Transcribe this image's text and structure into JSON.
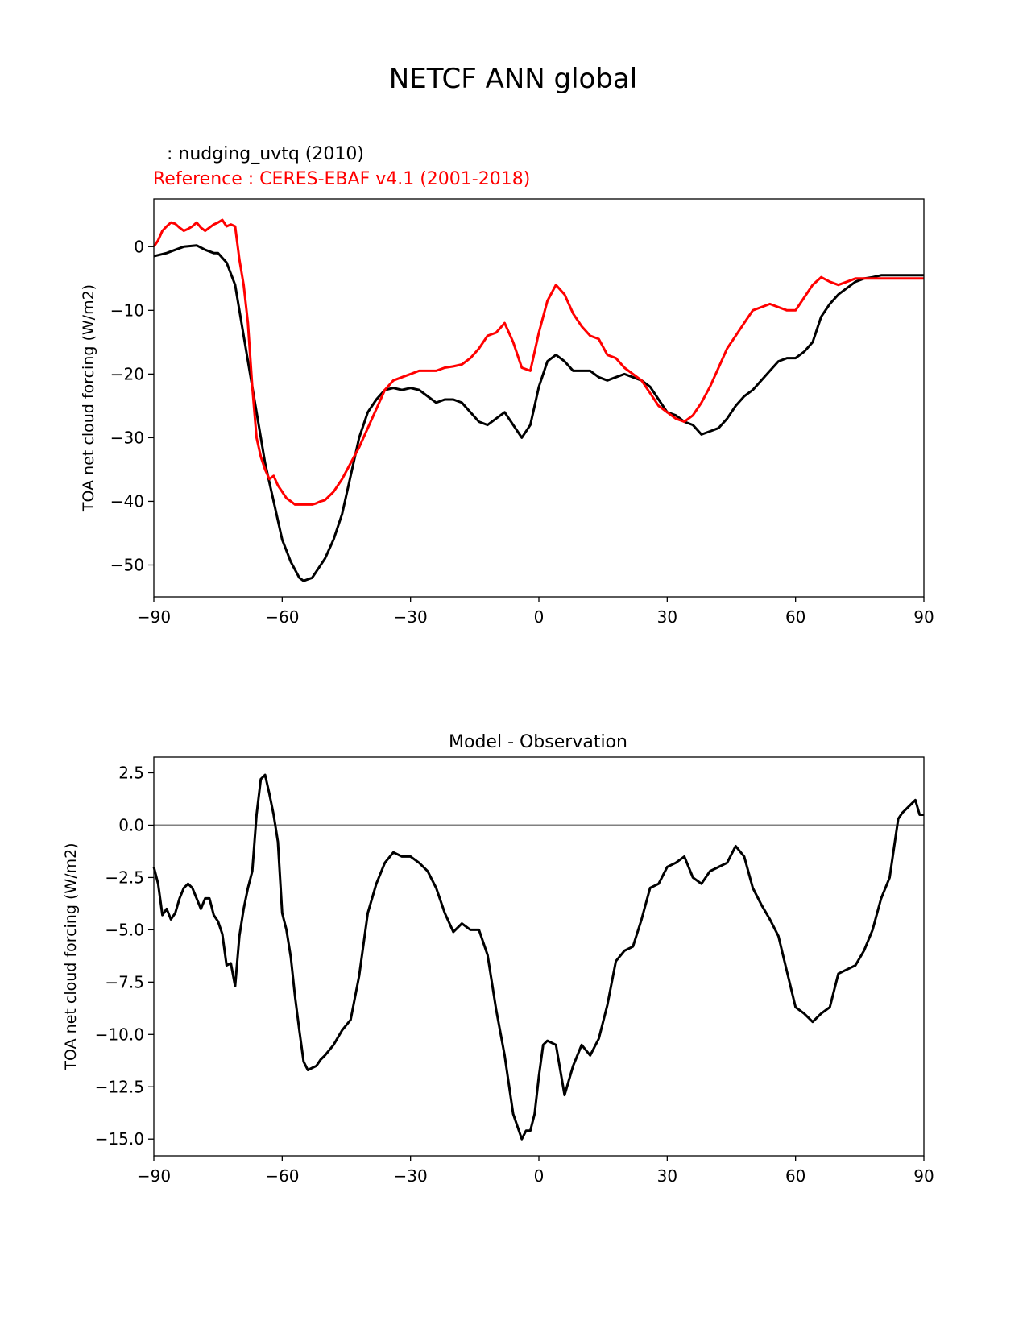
{
  "figure": {
    "title": "NETCF ANN global"
  },
  "top_panel": {
    "test_label": " : nudging_uvtq (2010)",
    "reference_label": "Reference : CERES-EBAF v4.1 (2001-2018)",
    "test_color": "#000000",
    "reference_color": "#ff0000"
  },
  "bottom_panel": {
    "title": "Model - Observation"
  },
  "chart_data": [
    {
      "type": "line",
      "xlabel": "",
      "ylabel": "TOA net cloud forcing (W/m2)",
      "xlim": [
        -90,
        90
      ],
      "ylim": [
        -55,
        7.5
      ],
      "xticks": [
        -90,
        -60,
        -30,
        0,
        30,
        60,
        90
      ],
      "xtick_labels": [
        "−90",
        "−60",
        "−30",
        "0",
        "30",
        "60",
        "90"
      ],
      "yticks": [
        0,
        -10,
        -20,
        -30,
        -40,
        -50
      ],
      "ytick_labels": [
        "0",
        "−10",
        "−20",
        "−30",
        "−40",
        "−50"
      ],
      "series": [
        {
          "name": "nudging_uvtq (2010)",
          "color": "#000000",
          "x": [
            -90,
            -87,
            -85,
            -83,
            -80,
            -78,
            -76,
            -75,
            -73,
            -71,
            -69,
            -67,
            -65,
            -64,
            -62,
            -60,
            -58,
            -56,
            -55,
            -53,
            -52,
            -50,
            -48,
            -46,
            -44,
            -42,
            -40,
            -38,
            -36,
            -34,
            -32,
            -30,
            -28,
            -26,
            -24,
            -22,
            -20,
            -18,
            -16,
            -14,
            -12,
            -10,
            -8,
            -6,
            -4,
            -2,
            0,
            2,
            4,
            6,
            8,
            10,
            12,
            14,
            16,
            18,
            20,
            22,
            24,
            26,
            28,
            30,
            32,
            34,
            36,
            38,
            40,
            42,
            44,
            46,
            48,
            50,
            52,
            54,
            56,
            58,
            60,
            62,
            64,
            66,
            68,
            70,
            72,
            74,
            76,
            78,
            80,
            82,
            84,
            86,
            88,
            90
          ],
          "y": [
            -1.5,
            -1.0,
            -0.5,
            0.0,
            0.2,
            -0.5,
            -1.0,
            -1.0,
            -2.5,
            -6.0,
            -14.0,
            -22.0,
            -30.0,
            -34.0,
            -40.0,
            -46.0,
            -49.5,
            -52.0,
            -52.5,
            -52.0,
            -51.0,
            -49.0,
            -46.0,
            -42.0,
            -36.0,
            -30.0,
            -26.0,
            -24.0,
            -22.5,
            -22.2,
            -22.5,
            -22.2,
            -22.5,
            -23.5,
            -24.5,
            -24.0,
            -24.0,
            -24.5,
            -26.0,
            -27.5,
            -28.0,
            -27.0,
            -26.0,
            -28.0,
            -30.0,
            -28.0,
            -22.0,
            -18.0,
            -17.0,
            -18.0,
            -19.5,
            -19.5,
            -19.5,
            -20.5,
            -21.0,
            -20.5,
            -20.0,
            -20.5,
            -21.0,
            -22.0,
            -24.0,
            -26.0,
            -26.5,
            -27.5,
            -28.0,
            -29.5,
            -29.0,
            -28.5,
            -27.0,
            -25.0,
            -23.5,
            -22.5,
            -21.0,
            -19.5,
            -18.0,
            -17.5,
            -17.5,
            -16.5,
            -15.0,
            -11.0,
            -9.0,
            -7.5,
            -6.5,
            -5.5,
            -5.0,
            -4.8,
            -4.5,
            -4.5,
            -4.5,
            -4.5,
            -4.5,
            -4.5
          ]
        },
        {
          "name": "CERES-EBAF v4.1 (2001-2018)",
          "color": "#ff0000",
          "x": [
            -90,
            -89,
            -88,
            -87,
            -86,
            -85,
            -84,
            -83,
            -82,
            -81,
            -80,
            -79,
            -78,
            -77,
            -76,
            -75,
            -74,
            -73,
            -72,
            -71,
            -70,
            -69,
            -68,
            -67,
            -66,
            -65,
            -64,
            -63,
            -62,
            -61,
            -60,
            -59,
            -58,
            -57,
            -56,
            -55,
            -54,
            -53,
            -52,
            -51,
            -50,
            -48,
            -46,
            -44,
            -42,
            -40,
            -38,
            -36,
            -34,
            -32,
            -30,
            -28,
            -26,
            -24,
            -22,
            -20,
            -18,
            -16,
            -14,
            -12,
            -10,
            -8,
            -6,
            -4,
            -2,
            0,
            2,
            4,
            6,
            8,
            10,
            12,
            14,
            16,
            18,
            20,
            22,
            24,
            26,
            28,
            30,
            32,
            34,
            36,
            38,
            40,
            42,
            44,
            46,
            48,
            50,
            52,
            54,
            56,
            58,
            60,
            62,
            64,
            66,
            68,
            70,
            72,
            74,
            76,
            78,
            80,
            82,
            84,
            86,
            88,
            90
          ],
          "y": [
            0.0,
            1.0,
            2.5,
            3.2,
            3.8,
            3.6,
            3.0,
            2.5,
            2.8,
            3.2,
            3.8,
            3.0,
            2.5,
            3.0,
            3.5,
            3.8,
            4.2,
            3.2,
            3.5,
            3.2,
            -2.0,
            -6.0,
            -12.0,
            -22.0,
            -30.0,
            -33.0,
            -35.0,
            -36.5,
            -36.0,
            -37.5,
            -38.5,
            -39.5,
            -40.0,
            -40.5,
            -40.5,
            -40.5,
            -40.5,
            -40.5,
            -40.3,
            -40.0,
            -39.8,
            -38.5,
            -36.5,
            -34.0,
            -31.5,
            -28.5,
            -25.5,
            -22.5,
            -21.0,
            -20.5,
            -20.0,
            -19.5,
            -19.5,
            -19.5,
            -19.0,
            -18.8,
            -18.5,
            -17.5,
            -16.0,
            -14.0,
            -13.5,
            -12.0,
            -15.0,
            -19.0,
            -19.5,
            -13.5,
            -8.5,
            -6.0,
            -7.5,
            -10.5,
            -12.5,
            -14.0,
            -14.5,
            -17.0,
            -17.5,
            -19.0,
            -20.0,
            -21.0,
            -23.0,
            -25.0,
            -26.0,
            -27.0,
            -27.5,
            -26.5,
            -24.5,
            -22.0,
            -19.0,
            -16.0,
            -14.0,
            -12.0,
            -10.0,
            -9.5,
            -9.0,
            -9.5,
            -10.0,
            -10.0,
            -8.0,
            -6.0,
            -4.8,
            -5.5,
            -6.0,
            -5.5,
            -5.0,
            -5.0,
            -5.0,
            -5.0,
            -5.0,
            -5.0,
            -5.0,
            -5.0,
            -5.0
          ]
        }
      ]
    },
    {
      "type": "line",
      "title": "Model - Observation",
      "xlabel": "",
      "ylabel": "TOA net cloud forcing (W/m2)",
      "xlim": [
        -90,
        90
      ],
      "ylim": [
        -15.8,
        3.25
      ],
      "xticks": [
        -90,
        -60,
        -30,
        0,
        30,
        60,
        90
      ],
      "xtick_labels": [
        "−90",
        "−60",
        "−30",
        "0",
        "30",
        "60",
        "90"
      ],
      "yticks": [
        2.5,
        0.0,
        -2.5,
        -5.0,
        -7.5,
        -10.0,
        -12.5,
        -15.0
      ],
      "ytick_labels": [
        "2.5",
        "0.0",
        "−2.5",
        "−5.0",
        "−7.5",
        "−10.0",
        "−12.5",
        "−15.0"
      ],
      "zero_line_color": "#808080",
      "series": [
        {
          "name": "",
          "color": "#000000",
          "x": [
            -90,
            -89,
            -88,
            -87,
            -86,
            -85,
            -84,
            -83,
            -82,
            -81,
            -80,
            -79,
            -78,
            -77,
            -76,
            -75,
            -74,
            -73,
            -72,
            -71,
            -70,
            -69,
            -68,
            -67,
            -66,
            -65,
            -64,
            -63,
            -62,
            -61,
            -60,
            -59,
            -58,
            -57,
            -56,
            -55,
            -54,
            -53,
            -52,
            -51,
            -50,
            -48,
            -46,
            -44,
            -42,
            -40,
            -38,
            -36,
            -34,
            -32,
            -31,
            -30,
            -28,
            -26,
            -24,
            -22,
            -20,
            -18,
            -16,
            -14,
            -12,
            -10,
            -8,
            -6,
            -4,
            -3,
            -2,
            -1,
            0,
            1,
            2,
            4,
            6,
            8,
            10,
            12,
            14,
            16,
            18,
            20,
            22,
            24,
            26,
            28,
            30,
            32,
            34,
            36,
            38,
            40,
            42,
            44,
            46,
            48,
            50,
            52,
            54,
            56,
            58,
            60,
            62,
            64,
            66,
            68,
            70,
            72,
            74,
            76,
            78,
            80,
            82,
            84,
            85,
            86,
            87,
            88,
            89,
            90
          ],
          "y": [
            -2.0,
            -2.8,
            -4.3,
            -4.0,
            -4.5,
            -4.2,
            -3.5,
            -3.0,
            -2.8,
            -3.0,
            -3.5,
            -4.0,
            -3.5,
            -3.5,
            -4.3,
            -4.6,
            -5.2,
            -6.7,
            -6.6,
            -7.7,
            -5.3,
            -4.0,
            -3.0,
            -2.2,
            0.5,
            2.2,
            2.4,
            1.5,
            0.5,
            -0.8,
            -4.2,
            -5.0,
            -6.3,
            -8.2,
            -9.8,
            -11.3,
            -11.7,
            -11.6,
            -11.5,
            -11.2,
            -11.0,
            -10.5,
            -9.8,
            -9.3,
            -7.2,
            -4.2,
            -2.8,
            -1.8,
            -1.3,
            -1.5,
            -1.5,
            -1.5,
            -1.8,
            -2.2,
            -3.0,
            -4.2,
            -5.1,
            -4.7,
            -5.0,
            -5.0,
            -6.2,
            -8.8,
            -11.0,
            -13.8,
            -15.0,
            -14.6,
            -14.6,
            -13.8,
            -12.0,
            -10.5,
            -10.3,
            -10.5,
            -12.9,
            -11.5,
            -10.5,
            -11.0,
            -10.2,
            -8.6,
            -6.5,
            -6.0,
            -5.8,
            -4.5,
            -3.0,
            -2.8,
            -2.0,
            -1.8,
            -1.5,
            -2.5,
            -2.8,
            -2.2,
            -2.0,
            -1.8,
            -1.0,
            -1.5,
            -3.0,
            -3.8,
            -4.5,
            -5.3,
            -7.0,
            -8.7,
            -9.0,
            -9.4,
            -9.0,
            -8.7,
            -7.1,
            -6.9,
            -6.7,
            -6.0,
            -5.0,
            -3.5,
            -2.5,
            0.3,
            0.6,
            0.8,
            1.0,
            1.2,
            0.5,
            0.5
          ]
        }
      ]
    }
  ]
}
